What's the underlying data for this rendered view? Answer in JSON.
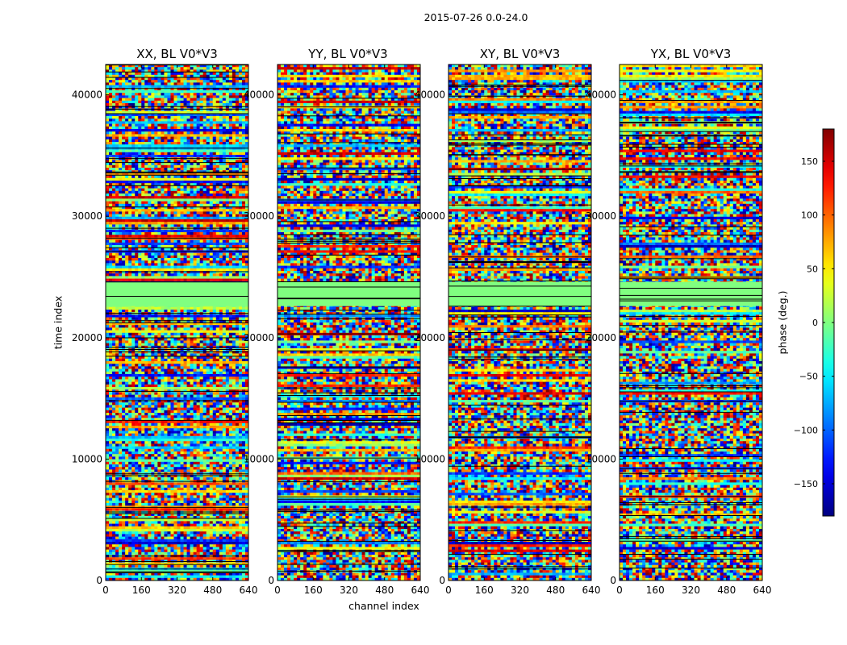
{
  "chart_data": {
    "type": "heatmap",
    "title": "2015-07-26 0.0-24.0",
    "xlabel": "channel index",
    "ylabel": "time index",
    "colorbar_label": "phase (deg.)",
    "colormap": "jet",
    "colorbar_range": [
      -180,
      180
    ],
    "colorbar_ticks": [
      "150",
      "100",
      "50",
      "0",
      "−50",
      "−100",
      "−150"
    ],
    "colorbar_tick_values": [
      150,
      100,
      50,
      0,
      -50,
      -100,
      -150
    ],
    "xlim": [
      0,
      640
    ],
    "ylim": [
      0,
      42500
    ],
    "x_ticks": [
      "0",
      "160",
      "320",
      "480",
      "640"
    ],
    "x_tick_values": [
      0,
      160,
      320,
      480,
      640
    ],
    "y_ticks": [
      "0",
      "10000",
      "20000",
      "30000",
      "40000"
    ],
    "y_tick_values": [
      0,
      10000,
      20000,
      30000,
      40000
    ],
    "grid": false,
    "panels": [
      {
        "title": "XX, BL V0*V3"
      },
      {
        "title": "YY, BL V0*V3"
      },
      {
        "title": "XY, BL V0*V3"
      },
      {
        "title": "YX, BL V0*V3"
      }
    ],
    "flagged_time_ranges": [
      [
        22600,
        24600
      ]
    ],
    "note_values": []
  },
  "colors": {
    "flagged": "#80ff80",
    "frame": "#000000"
  }
}
